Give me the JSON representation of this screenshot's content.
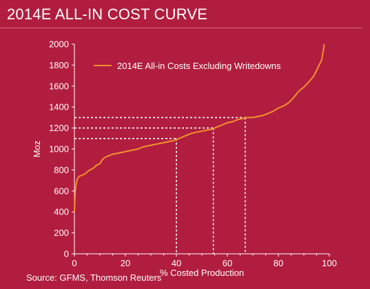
{
  "header": {
    "title": "2014E ALL-IN COST CURVE"
  },
  "footer": {
    "source": "Source: GFMS, Thomson Reuters"
  },
  "colors": {
    "background": "#b11d3f",
    "series": "#f2922e",
    "axis": "#ffffff",
    "guides": "#ffffff"
  },
  "chart_data": {
    "type": "line",
    "title": "2014E ALL-IN COST CURVE",
    "xlabel": "% Costed Production",
    "ylabel": "Moz",
    "xlim": [
      0,
      100
    ],
    "ylim": [
      0,
      2000
    ],
    "xticks": [
      0,
      20,
      40,
      60,
      80,
      100
    ],
    "yticks": [
      0,
      200,
      400,
      600,
      800,
      1000,
      1200,
      1400,
      1600,
      1800,
      2000
    ],
    "grid": false,
    "legend": "top-left",
    "series": [
      {
        "name": "2014E All-in Costs Excluding Writedowns",
        "x": [
          0,
          0.3,
          0.6,
          1,
          1.5,
          2,
          3,
          4,
          5,
          6,
          7,
          8,
          9,
          10,
          11,
          12,
          13,
          15,
          17,
          19,
          21,
          23,
          25,
          27,
          29,
          31,
          33,
          35,
          37,
          39,
          40,
          42,
          44,
          46,
          48,
          50,
          52,
          54,
          56,
          58,
          60,
          62,
          64,
          66,
          67,
          68,
          70,
          72,
          74,
          76,
          78,
          80,
          82,
          84,
          86,
          88,
          90,
          92,
          94,
          95,
          96,
          97,
          97.5,
          98
        ],
        "y": [
          400,
          580,
          650,
          700,
          730,
          740,
          750,
          760,
          780,
          800,
          810,
          830,
          850,
          860,
          900,
          920,
          930,
          950,
          960,
          970,
          980,
          990,
          1000,
          1020,
          1030,
          1040,
          1050,
          1060,
          1070,
          1080,
          1090,
          1110,
          1130,
          1150,
          1160,
          1170,
          1180,
          1190,
          1210,
          1230,
          1250,
          1260,
          1280,
          1290,
          1300,
          1300,
          1300,
          1310,
          1320,
          1340,
          1360,
          1390,
          1410,
          1440,
          1490,
          1550,
          1590,
          1640,
          1700,
          1750,
          1800,
          1850,
          1920,
          2000
        ]
      }
    ],
    "guides": [
      {
        "x": 40,
        "y": 1100
      },
      {
        "x": 54.5,
        "y": 1200
      },
      {
        "x": 67,
        "y": 1300
      }
    ]
  }
}
